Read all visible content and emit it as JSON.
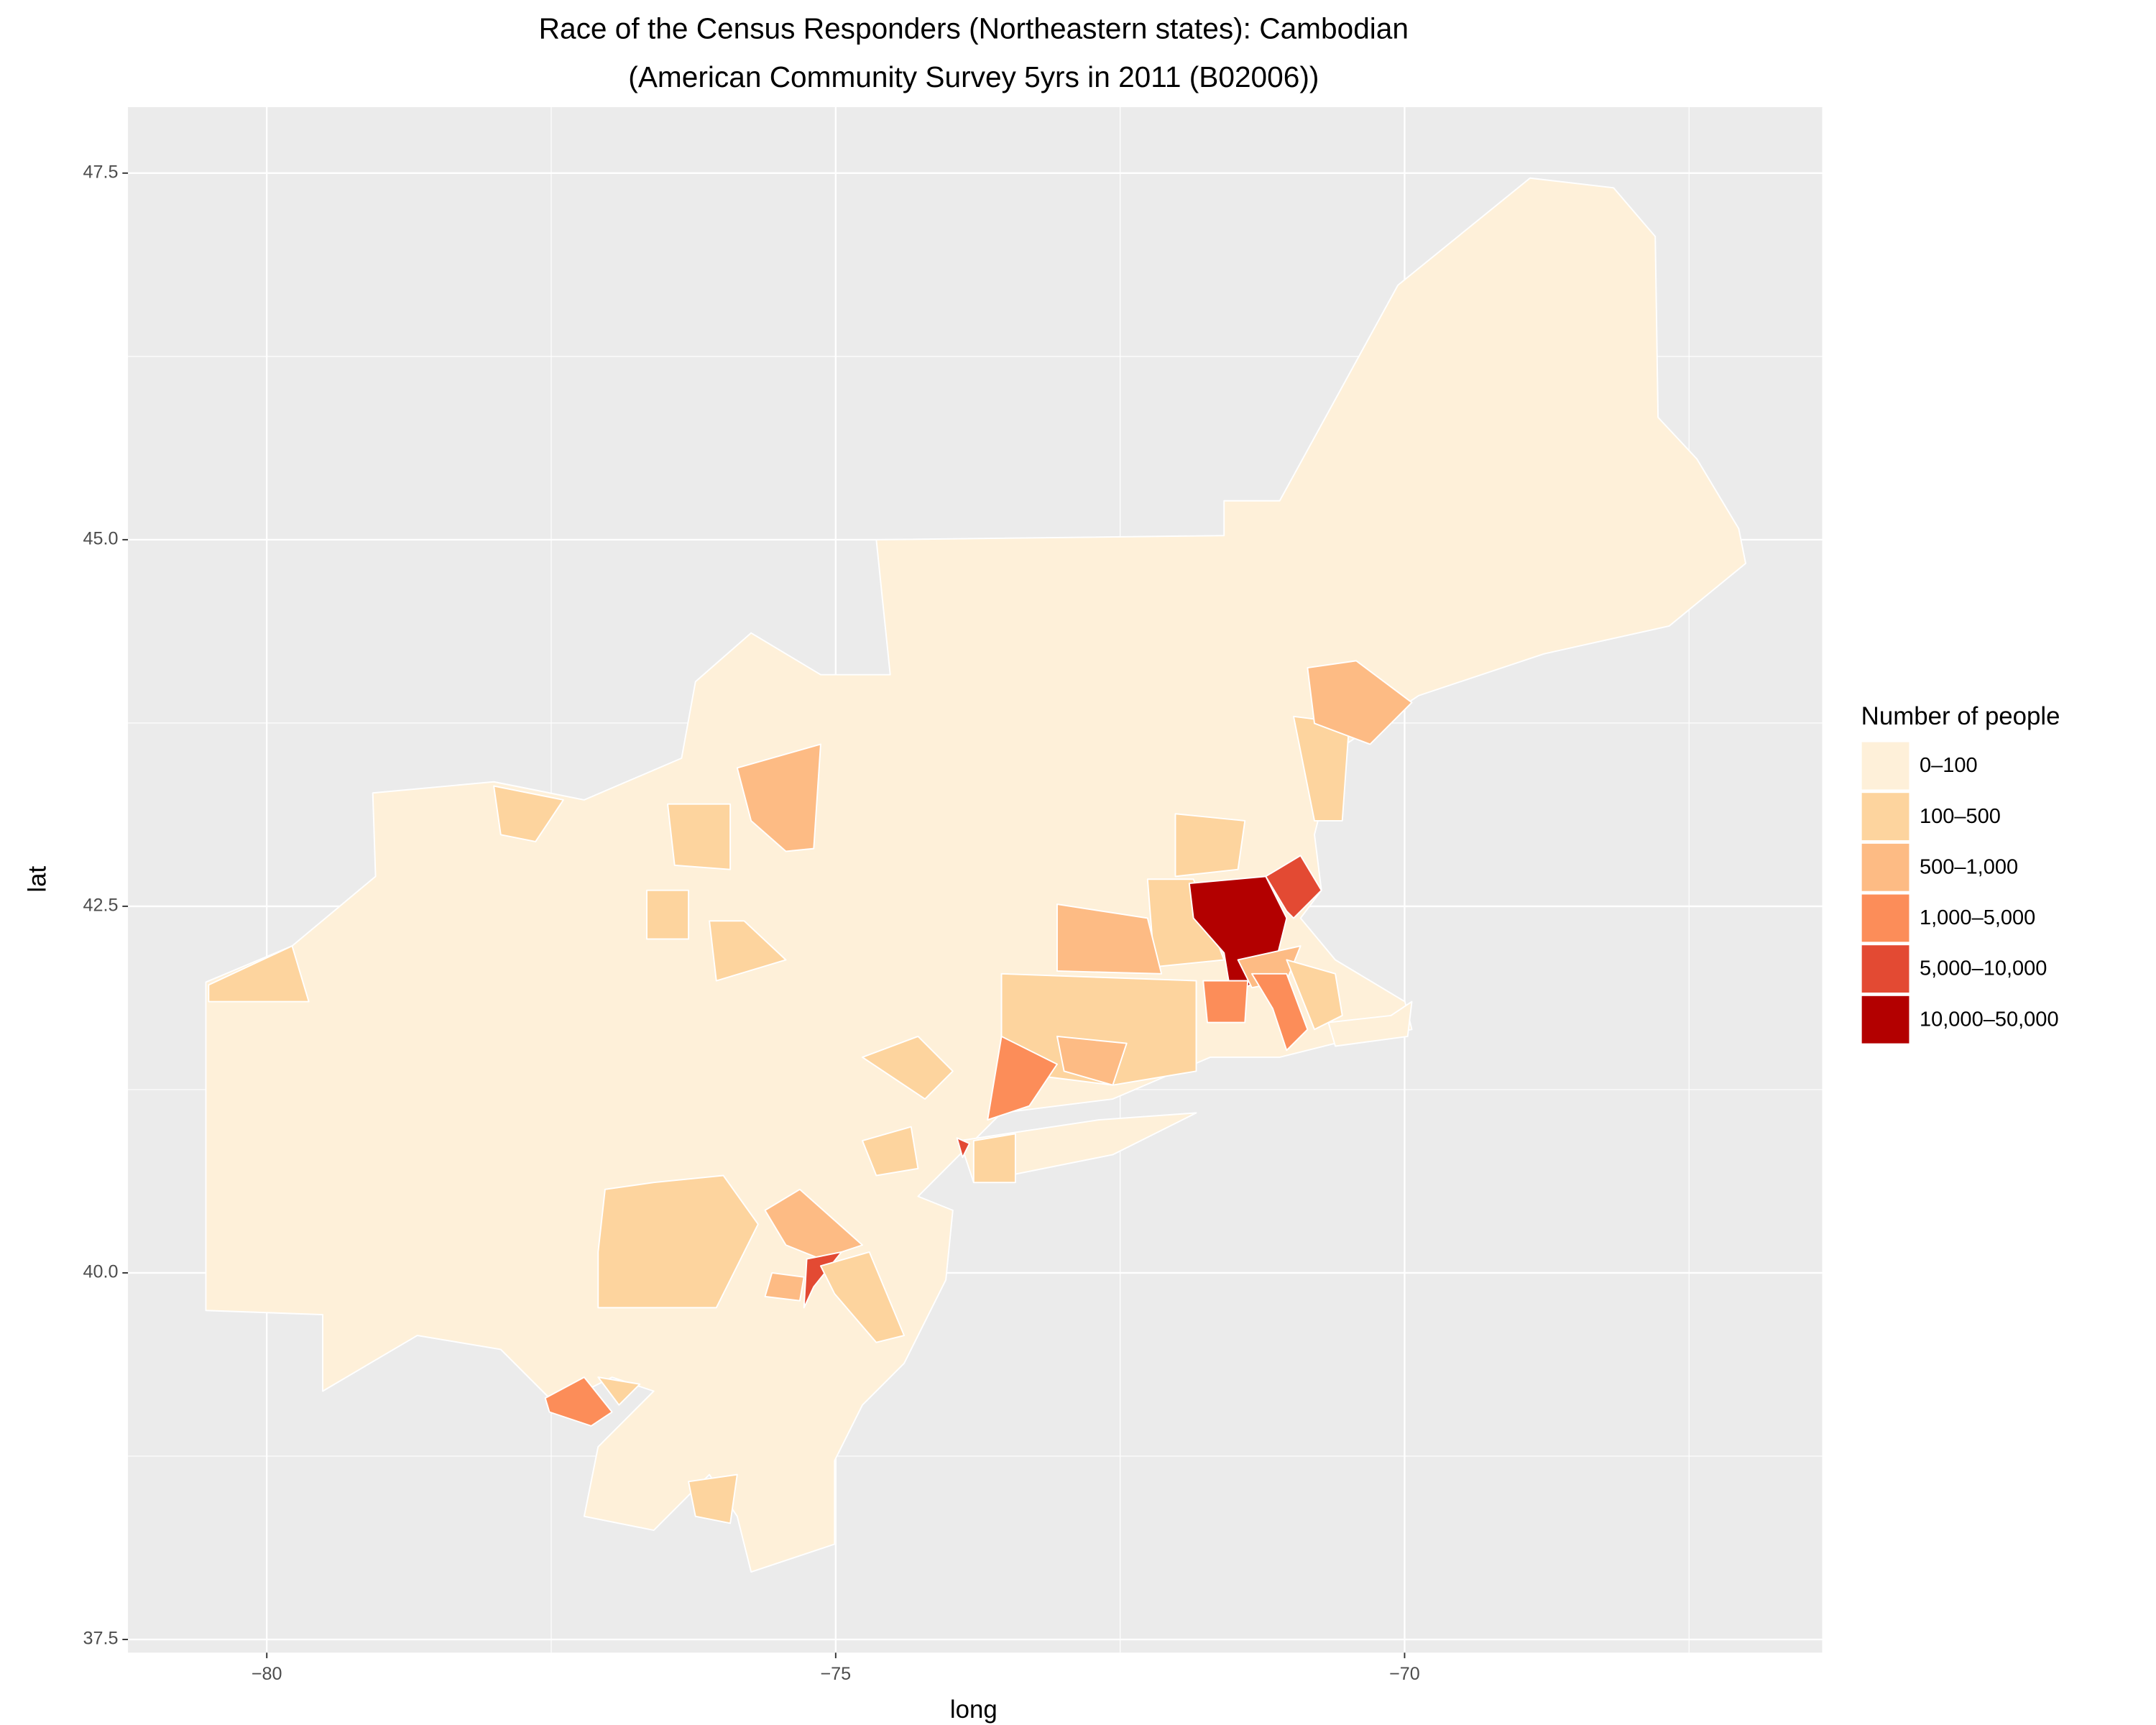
{
  "chart_data": {
    "type": "choropleth",
    "title": "Race of the Census Responders (Northeastern states): Cambodian",
    "subtitle": "(American Community Survey 5yrs in 2011 (B02006))",
    "x_label": "long",
    "y_label": "lat",
    "xlim": [
      -81.22,
      -66.33
    ],
    "ylim": [
      37.41,
      47.95
    ],
    "xticks": [
      {
        "value": -80,
        "label": "−80"
      },
      {
        "value": -75,
        "label": "−75"
      },
      {
        "value": -70,
        "label": "−70"
      }
    ],
    "yticks": [
      37.5,
      {
        "value": 40,
        "label": "40.0"
      },
      42.5,
      {
        "value": 45,
        "label": "45.0"
      },
      47.5
    ],
    "grid": true,
    "legend": {
      "title": "Number of people",
      "position": "right",
      "categories": [
        "0–100",
        "100–500",
        "500–1,000",
        "1,000–5,000",
        "5,000–10,000",
        "10,000–50,000"
      ],
      "colors": [
        "#fef0d9",
        "#fdd49e",
        "#fdbb84",
        "#fc8d59",
        "#e34a33",
        "#b30000"
      ]
    }
  }
}
